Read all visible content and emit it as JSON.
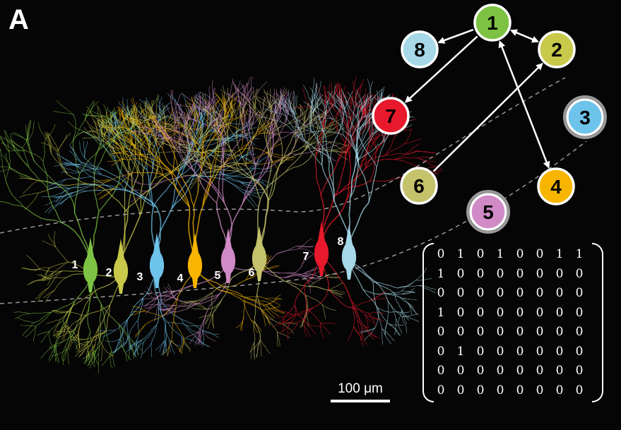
{
  "panel_label": "A",
  "neuron_labels": [
    {
      "text": "1",
      "color": "#7dc242"
    },
    {
      "text": "2",
      "color": "#c8c84a"
    },
    {
      "text": "3",
      "color": "#6ec3ea"
    },
    {
      "text": "4",
      "color": "#f7b500"
    },
    {
      "text": "5",
      "color": "#d08ac6"
    },
    {
      "text": "6",
      "color": "#c4c26a"
    },
    {
      "text": "7",
      "color": "#e8192c"
    },
    {
      "text": "8",
      "color": "#a6d8e8"
    }
  ],
  "graph_nodes": [
    {
      "id": "1",
      "color": "#7dc242",
      "halo": false
    },
    {
      "id": "2",
      "color": "#c8c84a",
      "halo": false
    },
    {
      "id": "3",
      "color": "#6ec3ea",
      "halo": true
    },
    {
      "id": "4",
      "color": "#f7b500",
      "halo": false
    },
    {
      "id": "5",
      "color": "#d08ac6",
      "halo": true
    },
    {
      "id": "6",
      "color": "#c4c26a",
      "halo": false
    },
    {
      "id": "7",
      "color": "#e8192c",
      "halo": false
    },
    {
      "id": "8",
      "color": "#a6d8e8",
      "halo": false
    }
  ],
  "graph_edges": [
    {
      "from": "1",
      "to": "8",
      "bidirectional": false
    },
    {
      "from": "1",
      "to": "7",
      "bidirectional": false
    },
    {
      "from": "1",
      "to": "2",
      "bidirectional": true
    },
    {
      "from": "1",
      "to": "4",
      "bidirectional": true
    },
    {
      "from": "6",
      "to": "2",
      "bidirectional": false
    }
  ],
  "matrix": [
    [
      "0",
      "1",
      "0",
      "1",
      "0",
      "0",
      "1",
      "1"
    ],
    [
      "1",
      "0",
      "0",
      "0",
      "0",
      "0",
      "0",
      "0"
    ],
    [
      "0",
      "0",
      "0",
      "0",
      "0",
      "0",
      "0",
      "0"
    ],
    [
      "1",
      "0",
      "0",
      "0",
      "0",
      "0",
      "0",
      "0"
    ],
    [
      "0",
      "0",
      "0",
      "0",
      "0",
      "0",
      "0",
      "0"
    ],
    [
      "0",
      "1",
      "0",
      "0",
      "0",
      "0",
      "0",
      "0"
    ],
    [
      "0",
      "0",
      "0",
      "0",
      "0",
      "0",
      "0",
      "0"
    ],
    [
      "0",
      "0",
      "0",
      "0",
      "0",
      "0",
      "0",
      "0"
    ]
  ],
  "scale_bar": {
    "label": "100 μm"
  }
}
